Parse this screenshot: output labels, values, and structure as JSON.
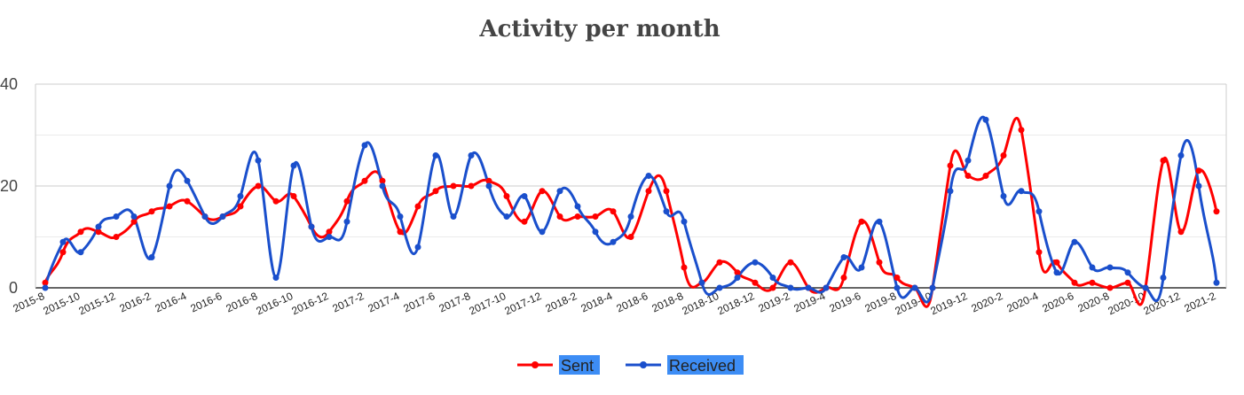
{
  "chart_data": {
    "type": "line",
    "title": "Activity per month",
    "xlabel": "",
    "ylabel": "",
    "ylim": [
      0,
      40
    ],
    "y_ticks": [
      "0",
      "20",
      "40"
    ],
    "grid": true,
    "legend_position": "bottom",
    "x": [
      "2015-8",
      "2015-9",
      "2015-10",
      "2015-11",
      "2015-12",
      "2016-1",
      "2016-2",
      "2016-3",
      "2016-4",
      "2016-5",
      "2016-6",
      "2016-7",
      "2016-8",
      "2016-9",
      "2016-10",
      "2016-11",
      "2016-12",
      "2017-1",
      "2017-2",
      "2017-3",
      "2017-4",
      "2017-5",
      "2017-6",
      "2017-7",
      "2017-8",
      "2017-9",
      "2017-10",
      "2017-11",
      "2017-12",
      "2018-1",
      "2018-2",
      "2018-3",
      "2018-4",
      "2018-5",
      "2018-6",
      "2018-7",
      "2018-8",
      "2018-9",
      "2018-10",
      "2018-11",
      "2018-12",
      "2019-1",
      "2019-2",
      "2019-3",
      "2019-4",
      "2019-5",
      "2019-6",
      "2019-7",
      "2019-8",
      "2019-9",
      "2019-10",
      "2019-11",
      "2019-12",
      "2020-1",
      "2020-2",
      "2020-3",
      "2020-4",
      "2020-5",
      "2020-6",
      "2020-7",
      "2020-8",
      "2020-9",
      "2020-10",
      "2020-11",
      "2020-12",
      "2021-1",
      "2021-2"
    ],
    "x_tick_labels": [
      "2015-8",
      "2015-10",
      "2015-12",
      "2016-2",
      "2016-4",
      "2016-6",
      "2016-8",
      "2016-10",
      "2016-12",
      "2017-2",
      "2017-4",
      "2017-6",
      "2017-8",
      "2017-10",
      "2017-12",
      "2018-2",
      "2018-4",
      "2018-6",
      "2018-8",
      "2018-10",
      "2018-12",
      "2019-2",
      "2019-4",
      "2019-6",
      "2019-8",
      "2019-10",
      "2019-12",
      "2020-2",
      "2020-4",
      "2020-6",
      "2020-8",
      "2020-10",
      "2020-12",
      "2021-2"
    ],
    "series": [
      {
        "name": "Sent",
        "color": "#ff0000",
        "values": [
          1,
          7,
          11,
          11,
          10,
          13,
          15,
          16,
          17,
          14,
          14,
          16,
          20,
          17,
          18,
          12,
          11,
          17,
          21,
          21,
          11,
          16,
          19,
          20,
          20,
          21,
          18,
          13,
          19,
          14,
          14,
          14,
          15,
          10,
          19,
          19,
          4,
          1,
          5,
          3,
          1,
          0,
          5,
          0,
          0,
          2,
          13,
          5,
          2,
          0,
          0,
          24,
          22,
          22,
          26,
          31,
          7,
          5,
          1,
          1,
          0,
          1,
          0,
          25,
          11,
          23,
          15
        ]
      },
      {
        "name": "Received",
        "color": "#1a4fcc",
        "values": [
          0,
          9,
          7,
          12,
          14,
          14,
          6,
          20,
          21,
          14,
          14,
          18,
          25,
          2,
          24,
          12,
          10,
          13,
          28,
          20,
          14,
          8,
          26,
          14,
          26,
          20,
          14,
          18,
          11,
          19,
          16,
          11,
          9,
          14,
          22,
          15,
          13,
          1,
          0,
          2,
          5,
          2,
          0,
          0,
          0,
          6,
          4,
          13,
          0,
          0,
          0,
          19,
          25,
          33,
          18,
          19,
          15,
          3,
          9,
          4,
          4,
          3,
          0,
          2,
          26,
          20,
          1
        ]
      }
    ]
  }
}
